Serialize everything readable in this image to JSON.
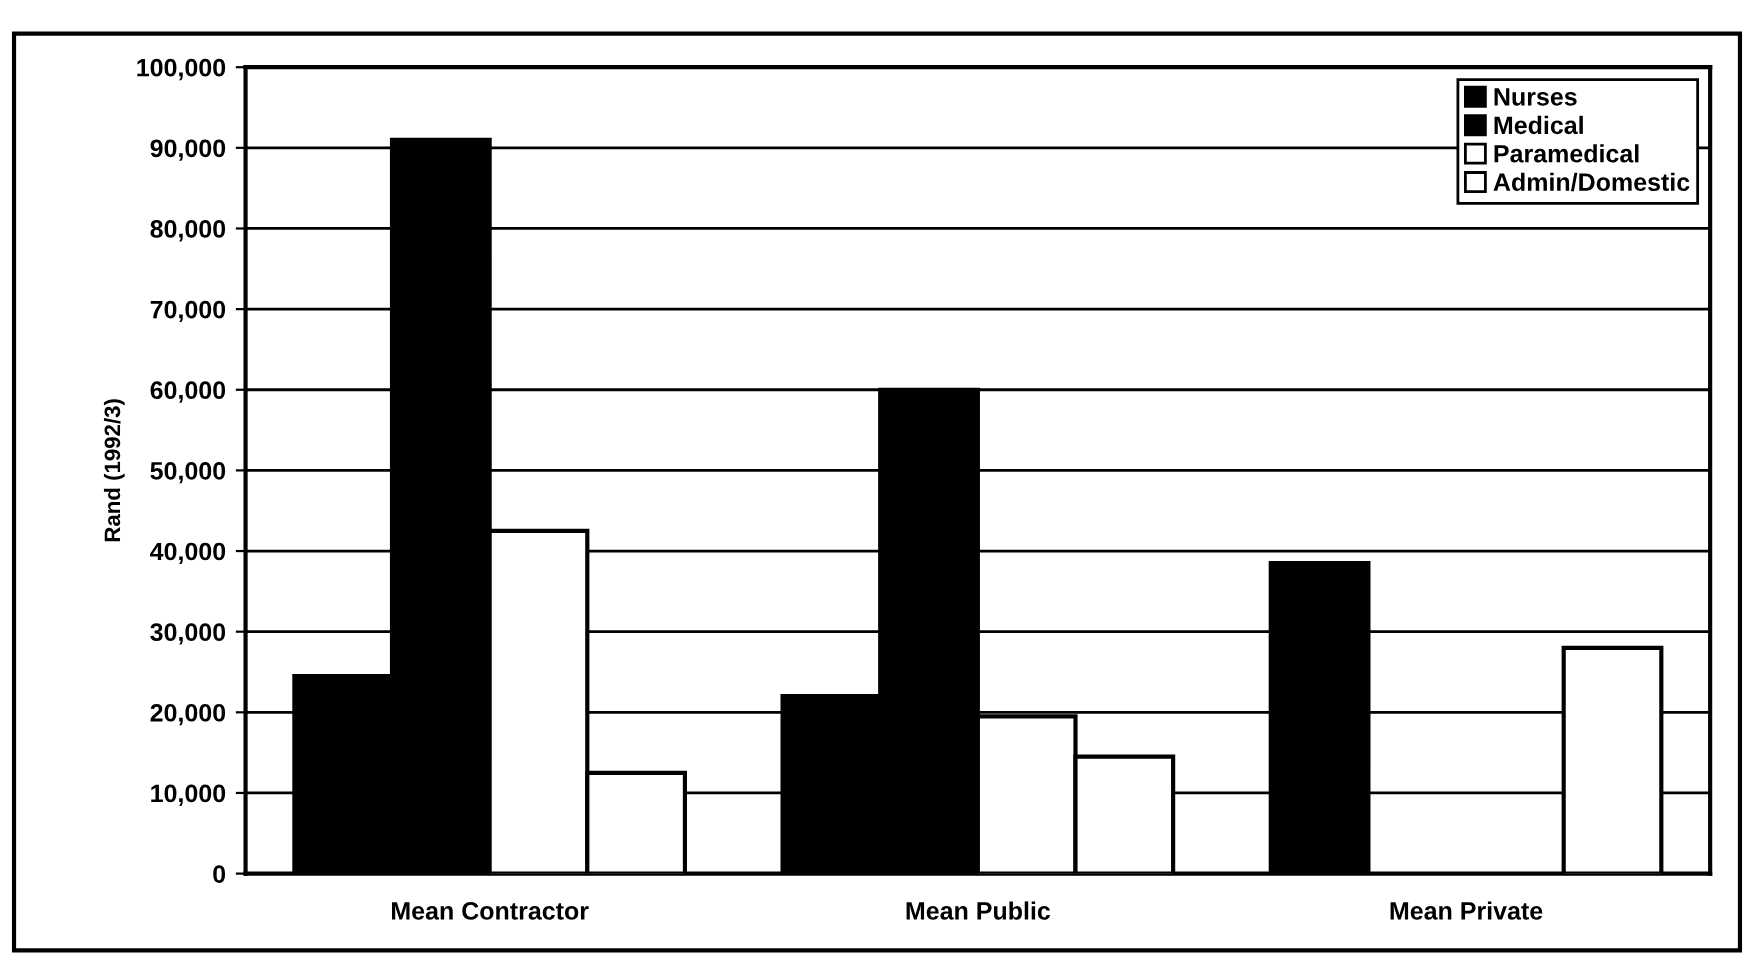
{
  "chart_data": {
    "type": "bar",
    "ylabel": "Rand (1992/3)",
    "categories": [
      "Mean Contractor",
      "Mean Public",
      "Mean Private"
    ],
    "series": [
      {
        "name": "Nurses",
        "color": "#000000",
        "values": [
          24500,
          22000,
          38500
        ]
      },
      {
        "name": "Medical",
        "color": "#000000",
        "values": [
          91000,
          60000,
          null
        ]
      },
      {
        "name": "Paramedical",
        "color": "#ffffff",
        "values": [
          42500,
          19500,
          null
        ]
      },
      {
        "name": "Admin/Domestic",
        "color": "#ffffff",
        "values": [
          12500,
          14500,
          28000
        ]
      }
    ],
    "ylim": [
      0,
      100000
    ],
    "yticks": [
      {
        "value": 0,
        "label": "0"
      },
      {
        "value": 10000,
        "label": "10,000"
      },
      {
        "value": 20000,
        "label": "20,000"
      },
      {
        "value": 30000,
        "label": "30,000"
      },
      {
        "value": 40000,
        "label": "40,000"
      },
      {
        "value": 50000,
        "label": "50,000"
      },
      {
        "value": 60000,
        "label": "60,000"
      },
      {
        "value": 70000,
        "label": "70,000"
      },
      {
        "value": 80000,
        "label": "80,000"
      },
      {
        "value": 90000,
        "label": "90,000"
      },
      {
        "value": 100000,
        "label": "100,000"
      }
    ],
    "grid": "y",
    "legend": "top right"
  }
}
